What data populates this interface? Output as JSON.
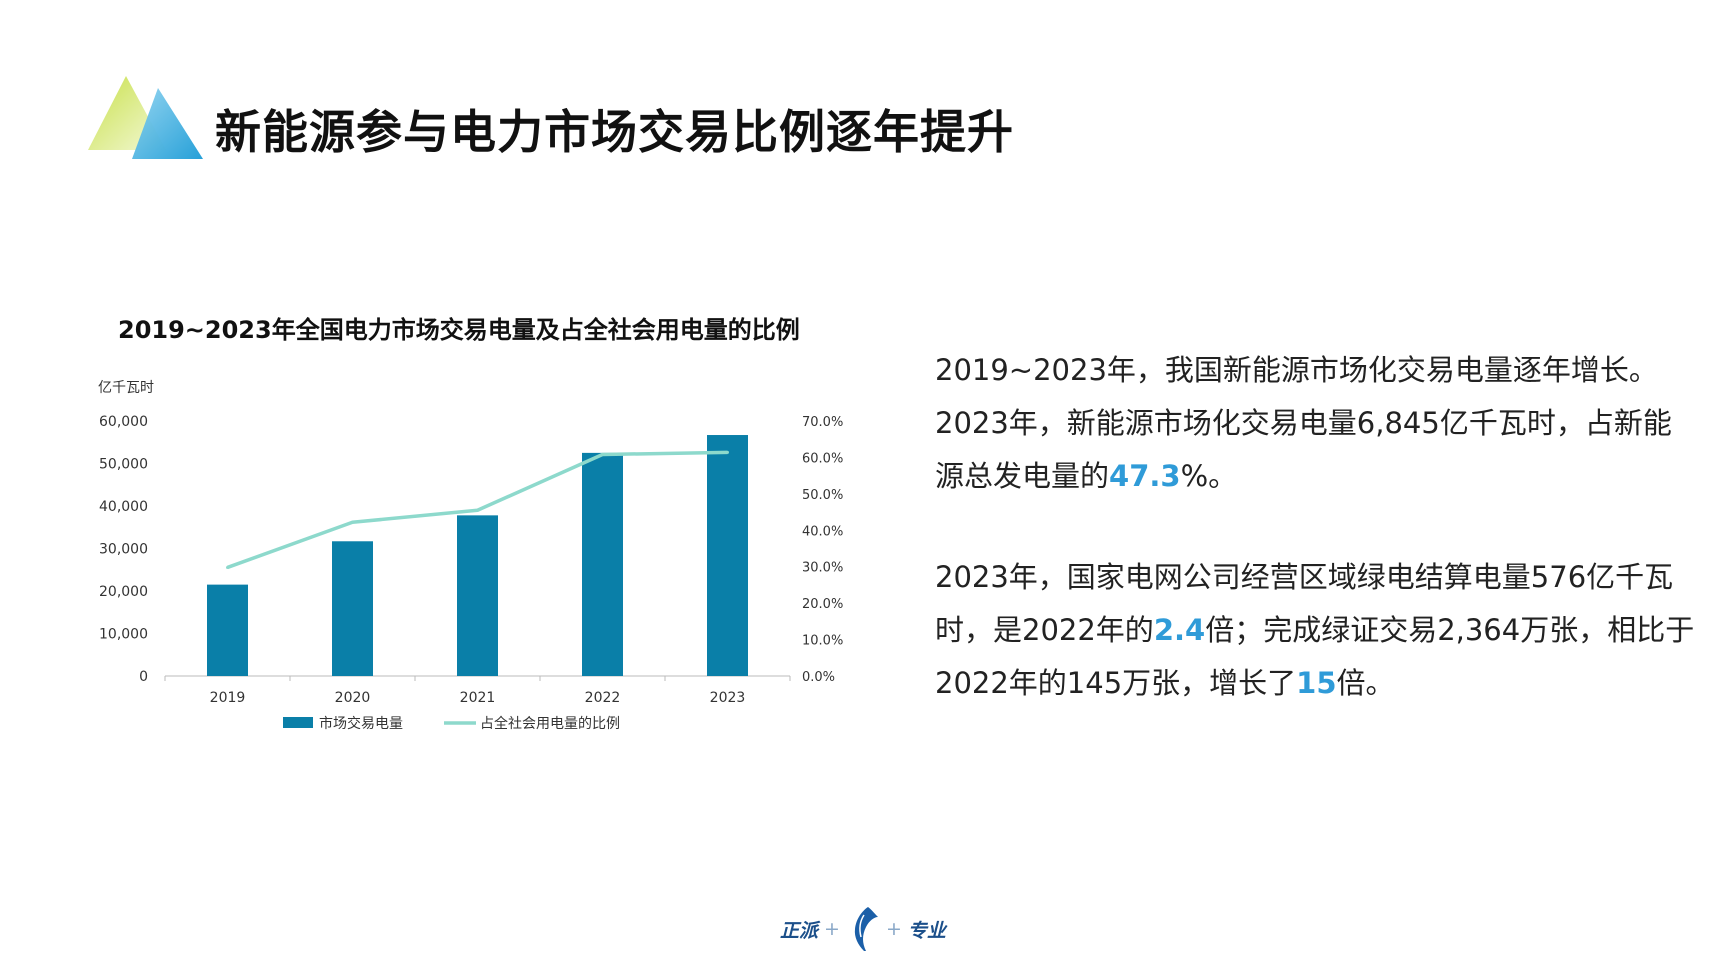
{
  "header": {
    "title": "新能源参与电力市场交易比例逐年提升"
  },
  "chart_data": {
    "type": "bar",
    "title": "2019~2023年全国电力市场交易电量及占全社会用电量的比例",
    "ylabel": "亿千瓦时",
    "categories": [
      "2019",
      "2020",
      "2021",
      "2022",
      "2023"
    ],
    "ylim": [
      0,
      60000
    ],
    "y_ticks": [
      "60,000",
      "50,000",
      "40,000",
      "30,000",
      "20,000",
      "10,000",
      "0"
    ],
    "y2lim": [
      0,
      70
    ],
    "y2_ticks": [
      "70.0%",
      "60.0%",
      "50.0%",
      "40.0%",
      "30.0%",
      "20.0%",
      "10.0%",
      "0.0%"
    ],
    "series": [
      {
        "name": "市场交易电量",
        "type": "bar",
        "axis": "left",
        "values": [
          21500,
          31700,
          37800,
          52500,
          56700
        ],
        "color": "#0a7fa8"
      },
      {
        "name": "占全社会用电量的比例",
        "type": "line",
        "axis": "right",
        "values": [
          29.8,
          42.2,
          45.5,
          60.8,
          61.4
        ],
        "color": "#8dd9cc"
      }
    ],
    "legend_position": "bottom",
    "grid": false
  },
  "text": {
    "para1_parts": [
      {
        "t": "2019~2023年，我国新能源市场化交易电量逐年增长。2023年，新能源市场化交易电量6,845亿千瓦时，占新能源总发电量的",
        "hl": false
      },
      {
        "t": "47.3",
        "hl": true
      },
      {
        "t": "%。",
        "hl": false
      }
    ],
    "para2_parts": [
      {
        "t": "2023年，国家电网公司经营区域绿电结算电量576亿千瓦时，是2022年的",
        "hl": false
      },
      {
        "t": "2.4",
        "hl": true
      },
      {
        "t": "倍；完成绿证交易2,364万张，相比于2022年的145万张，增长了",
        "hl": false
      },
      {
        "t": "15",
        "hl": true
      },
      {
        "t": "倍。",
        "hl": false
      }
    ]
  },
  "footer": {
    "left": "正派",
    "right": "专业"
  },
  "colors": {
    "accent": "#2f9bd8",
    "bar": "#0a7fa8",
    "line": "#8dd9cc",
    "logo_blue": "#2fa6d8",
    "logo_green": "#d3e66a"
  }
}
